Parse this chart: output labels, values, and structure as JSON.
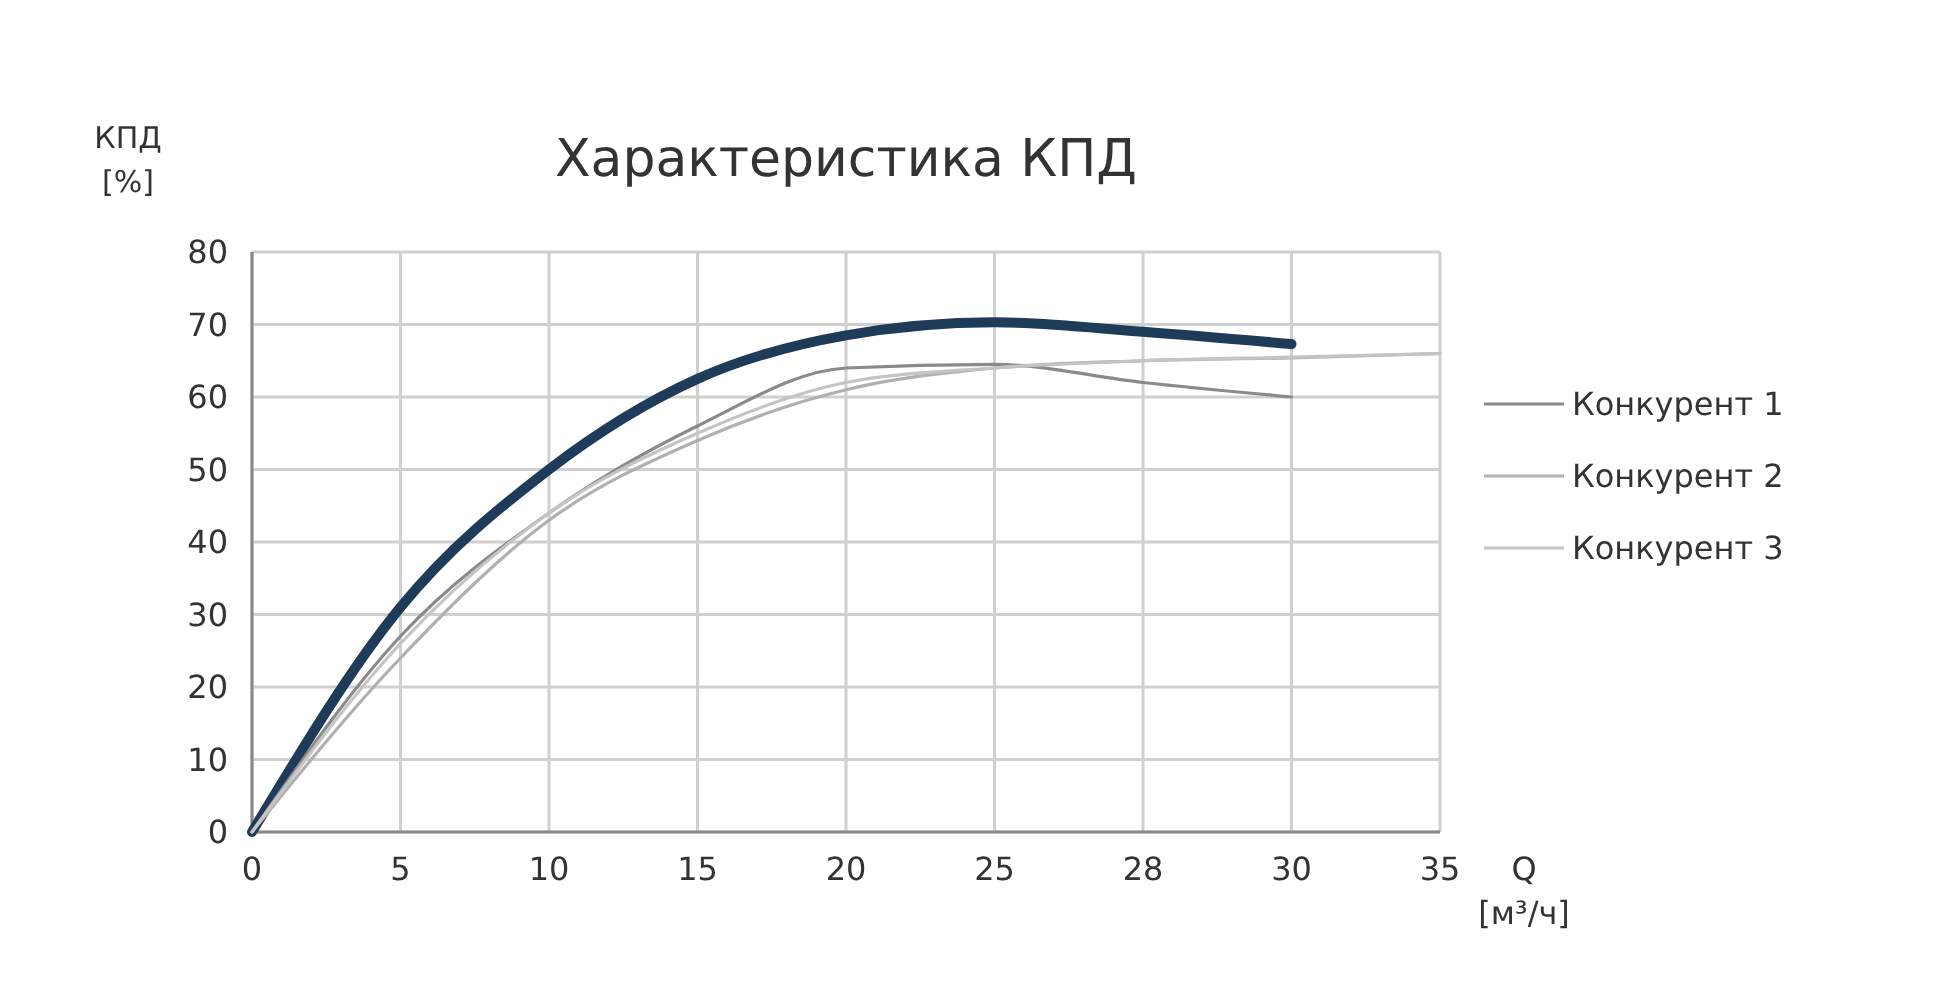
{
  "chart_data": {
    "type": "line",
    "title": "Характеристика КПД",
    "xlabel": "Q [м³/ч]",
    "ylabel": "КПД [%]",
    "categories": [
      "0",
      "5",
      "10",
      "15",
      "20",
      "25",
      "28",
      "30",
      "35"
    ],
    "series": [
      {
        "color": "#1f3b5a",
        "values": [
          0,
          31,
          50,
          62.5,
          68.5,
          70.3,
          69,
          67.3,
          null
        ]
      },
      {
        "name": "Конкурент 1",
        "color": "#8a8a8a",
        "values": [
          0,
          27,
          44,
          56,
          64,
          64.5,
          62,
          60,
          null
        ]
      },
      {
        "name": "Конкурент 2",
        "color": "#b0b0b0",
        "values": [
          0,
          24,
          43,
          54,
          61,
          64,
          65,
          65.4,
          66
        ]
      },
      {
        "name": "Конкурент 3",
        "color": "#c4c4c4",
        "values": [
          0,
          26,
          44,
          55,
          62,
          64,
          65,
          65.5,
          66
        ]
      }
    ],
    "ylim": [
      0,
      80
    ],
    "yticks": [
      0,
      10,
      20,
      30,
      40,
      50,
      60,
      70,
      80
    ],
    "grid": true,
    "legend": "right",
    "line_style": "solid",
    "marker": "none"
  }
}
